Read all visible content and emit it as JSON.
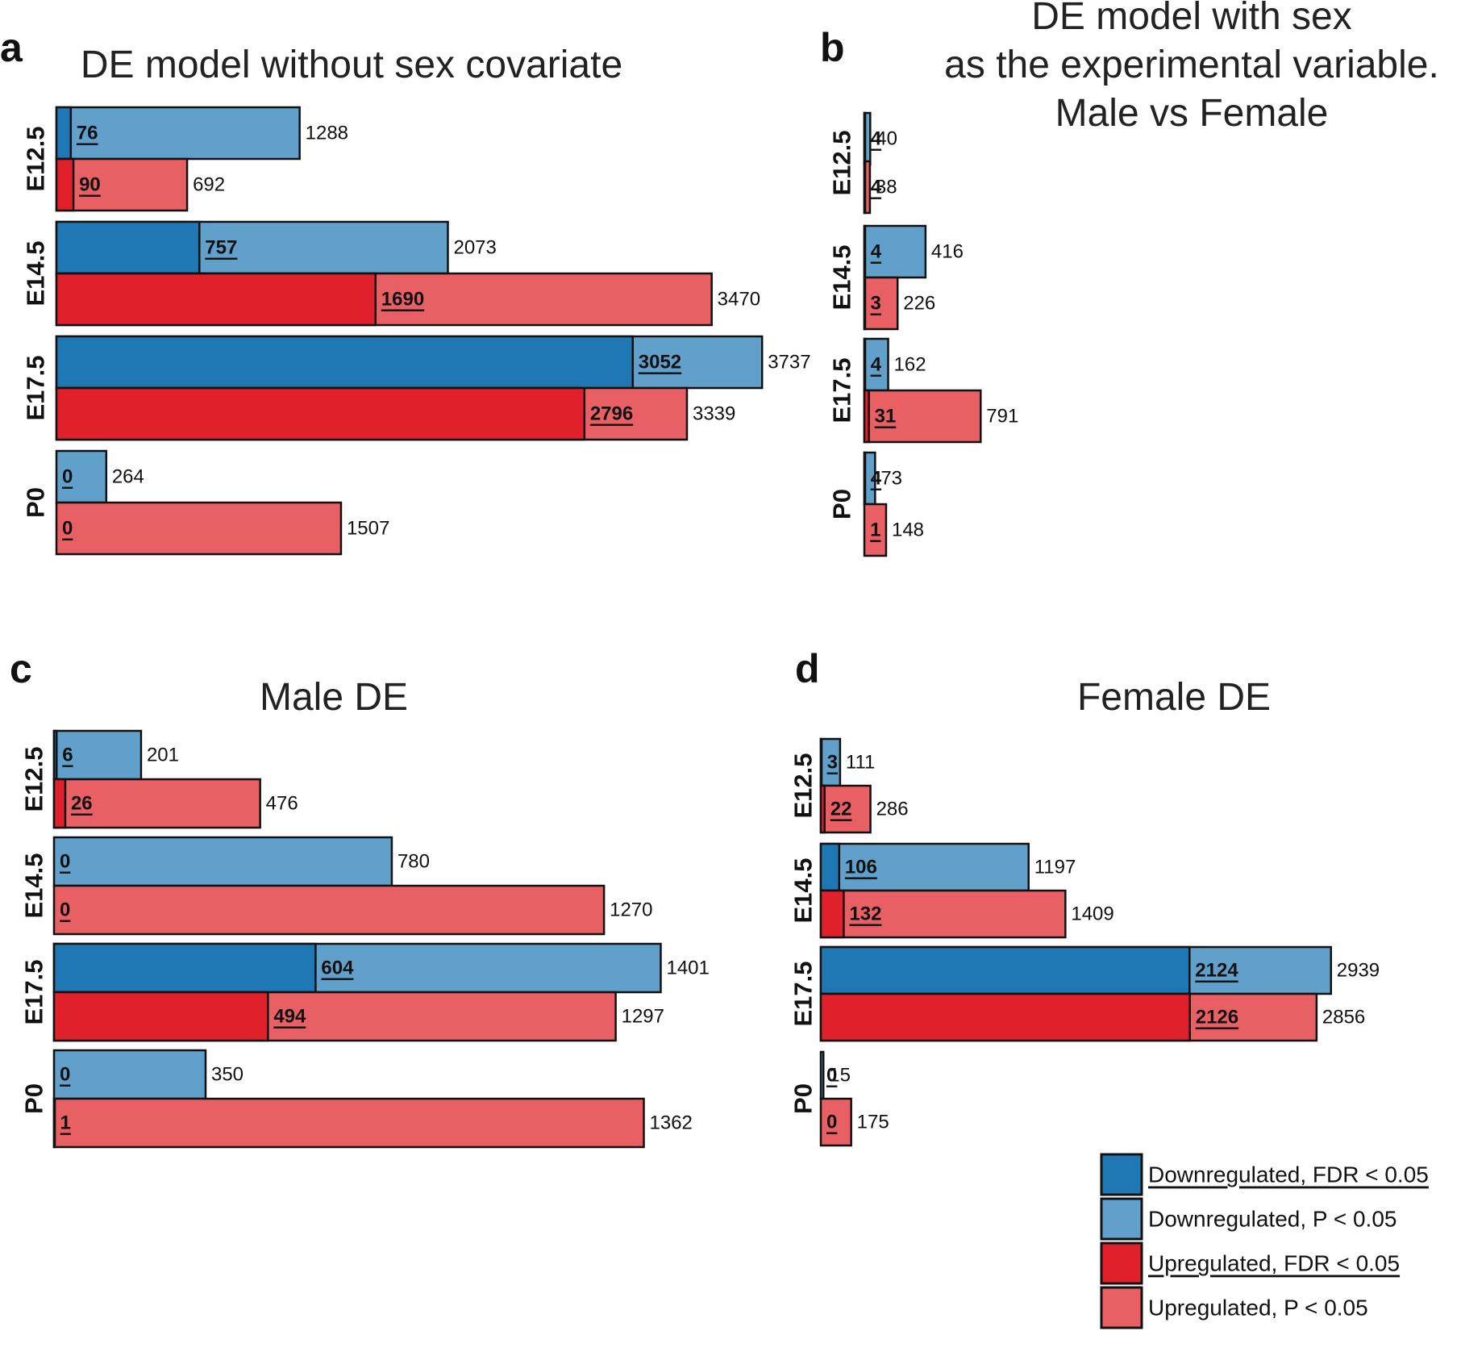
{
  "colors": {
    "down_fdr": "#1f77b4",
    "down_p": "#62a0cc",
    "up_fdr": "#e0212b",
    "up_p": "#e86064",
    "outline": "#111111"
  },
  "legend": {
    "items": [
      {
        "label": "Downregulated, FDR < 0.05",
        "color": "#1f77b4",
        "underline": true
      },
      {
        "label": "Downregulated, P < 0.05",
        "color": "#62a0cc",
        "underline": false
      },
      {
        "label": "Upregulated, FDR < 0.05",
        "color": "#e0212b",
        "underline": true
      },
      {
        "label": "Upregulated, P < 0.05",
        "color": "#e86064",
        "underline": false
      }
    ]
  },
  "chart_data": [
    {
      "type": "bar",
      "orientation": "horizontal",
      "panel": "a",
      "title": [
        "DE model without sex covariate"
      ],
      "categories": [
        "E12.5",
        "E14.5",
        "E17.5",
        "P0"
      ],
      "series": [
        {
          "name": "Downregulated",
          "fdr": [
            76,
            757,
            3052,
            0
          ],
          "p": [
            1288,
            2073,
            3737,
            264
          ]
        },
        {
          "name": "Upregulated",
          "fdr": [
            90,
            1690,
            2796,
            0
          ],
          "p": [
            692,
            3470,
            3339,
            1507
          ]
        }
      ]
    },
    {
      "type": "bar",
      "orientation": "horizontal",
      "panel": "b",
      "title": [
        "DE model with sex",
        "as the experimental variable.",
        "Male vs Female"
      ],
      "categories": [
        "E12.5",
        "E14.5",
        "E17.5",
        "P0"
      ],
      "series": [
        {
          "name": "Downregulated",
          "fdr": [
            4,
            4,
            4,
            4
          ],
          "p": [
            40,
            416,
            162,
            73
          ]
        },
        {
          "name": "Upregulated",
          "fdr": [
            4,
            3,
            31,
            1
          ],
          "p": [
            38,
            226,
            791,
            148
          ]
        }
      ]
    },
    {
      "type": "bar",
      "orientation": "horizontal",
      "panel": "c",
      "title": [
        "Male DE"
      ],
      "categories": [
        "E12.5",
        "E14.5",
        "E17.5",
        "P0"
      ],
      "series": [
        {
          "name": "Downregulated",
          "fdr": [
            6,
            0,
            604,
            0
          ],
          "p": [
            201,
            780,
            1401,
            350
          ]
        },
        {
          "name": "Upregulated",
          "fdr": [
            26,
            0,
            494,
            1
          ],
          "p": [
            476,
            1270,
            1297,
            1362
          ]
        }
      ]
    },
    {
      "type": "bar",
      "orientation": "horizontal",
      "panel": "d",
      "title": [
        "Female DE"
      ],
      "categories": [
        "E12.5",
        "E14.5",
        "E17.5",
        "P0"
      ],
      "series": [
        {
          "name": "Downregulated",
          "fdr": [
            3,
            106,
            2124,
            0
          ],
          "p": [
            111,
            1197,
            2939,
            15
          ]
        },
        {
          "name": "Upregulated",
          "fdr": [
            22,
            132,
            2126,
            0
          ],
          "p": [
            286,
            1409,
            2856,
            175
          ]
        }
      ]
    }
  ]
}
